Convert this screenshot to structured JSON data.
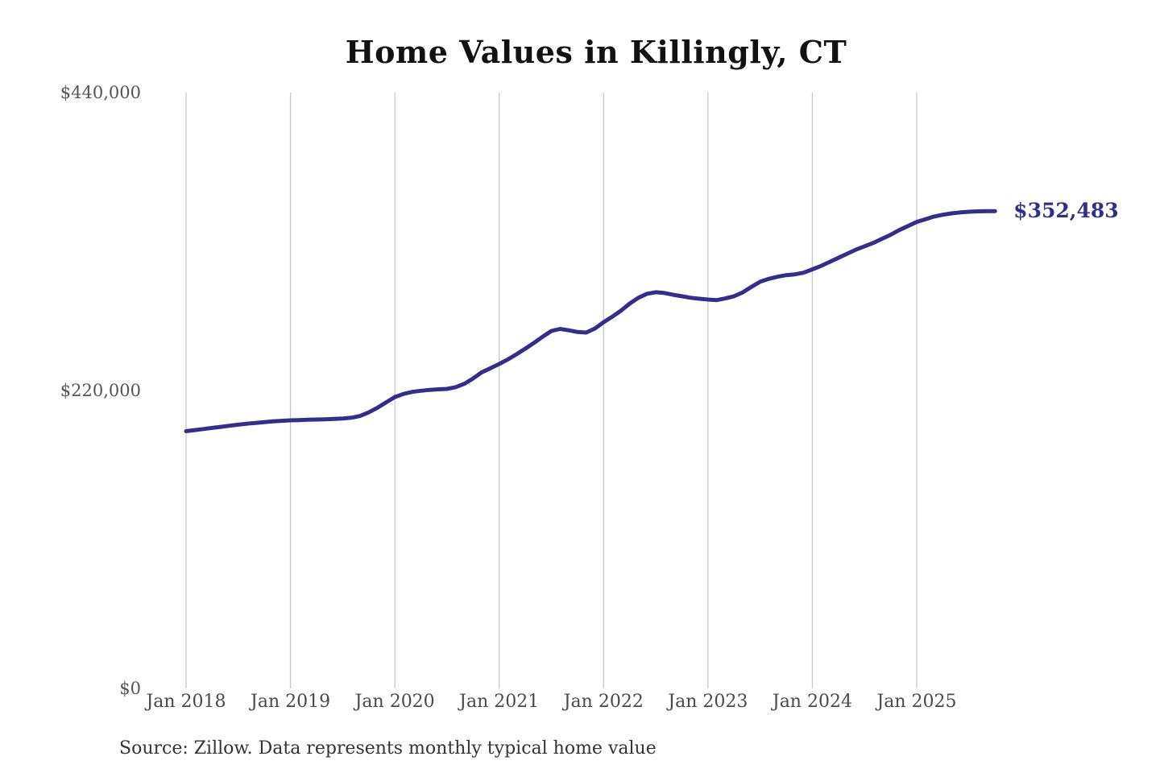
{
  "page": {
    "background": "#ffffff"
  },
  "chart_data": {
    "type": "line",
    "title": "Home Values in Killingly, CT",
    "xlabel": "",
    "ylabel": "",
    "ylim": [
      0,
      440000
    ],
    "grid": "vertical-only",
    "legend": "none",
    "x_ticks": [
      "Jan 2018",
      "Jan 2019",
      "Jan 2020",
      "Jan 2021",
      "Jan 2022",
      "Jan 2023",
      "Jan 2024",
      "Jan 2025"
    ],
    "y_ticks": [
      {
        "label": "$440,000",
        "value": 440000
      },
      {
        "label": "$220,000",
        "value": 220000
      },
      {
        "label": "$0",
        "value": 0
      }
    ],
    "end_label": "$352,483",
    "end_value": 352483,
    "colors": {
      "line": "#332e8e",
      "grid": "#c9c9c9",
      "tick_text": "#4a4a4a",
      "title_text": "#111111",
      "source_text": "#333333"
    },
    "series": [
      {
        "name": "Monthly typical home value",
        "start_month": "2018-01",
        "frequency": "monthly",
        "values": [
          190000,
          190800,
          191600,
          192400,
          193200,
          194000,
          194800,
          195500,
          196100,
          196700,
          197200,
          197650,
          198000,
          198200,
          198400,
          198600,
          198800,
          199000,
          199300,
          199900,
          201200,
          203900,
          207300,
          211200,
          215200,
          217500,
          219000,
          219800,
          220500,
          220900,
          221200,
          222500,
          225000,
          228900,
          233500,
          236500,
          239600,
          243000,
          246800,
          250900,
          255200,
          259800,
          264000,
          265500,
          264500,
          263200,
          262800,
          265800,
          270500,
          274500,
          279000,
          284200,
          288500,
          291500,
          292600,
          292000,
          290700,
          289600,
          288500,
          287800,
          287200,
          286800,
          288000,
          289600,
          292500,
          296500,
          300300,
          302500,
          304000,
          305200,
          305800,
          307000,
          309500,
          312000,
          315000,
          318000,
          321000,
          324000,
          326500,
          329000,
          332000,
          335000,
          338500,
          341500,
          344500,
          346500,
          348500,
          349800,
          350800,
          351500,
          352000,
          352300,
          352400,
          352483
        ]
      }
    ]
  },
  "source_note": "Source: Zillow. Data represents monthly typical home value"
}
